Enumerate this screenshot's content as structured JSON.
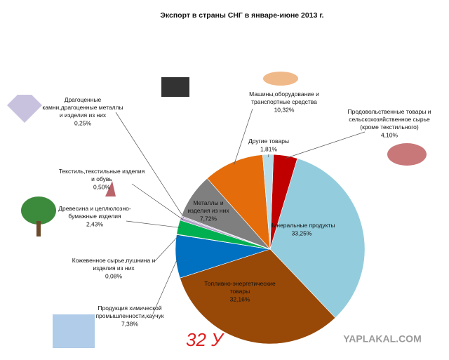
{
  "chart_data": {
    "type": "pie",
    "title": "Экспорт в страны СНГ в январе-июне 2013 г.",
    "categories": [
      "Продовольственные товары и\nсельскохозяйственное сырье\n(кроме текстильного)",
      "Минеральные продукты",
      "Топливно-энергетические\nтовары",
      "Продукция химической\nпромышленности,каучук",
      "Кожевенное сырье,пушнина и\nизделия из них",
      "Древесина и целлюлозно-\nбумажные изделия",
      "Текстиль,текстильные изделия\nи обувь",
      "Драгоценные\nкамни,драгоценные металлы\nи изделия из них",
      "Металлы и\nизделия из них",
      "Машины,оборудование и\nтранспортные средства",
      "Другие товары"
    ],
    "values": [
      4.1,
      33.25,
      32.16,
      7.38,
      0.08,
      2.43,
      0.5,
      0.25,
      7.72,
      10.32,
      1.81
    ],
    "value_labels": [
      "4,10%",
      "33,25%",
      "32,16%",
      "7,38%",
      "0,08%",
      "2,43%",
      "0,50%",
      "0,25%",
      "7,72%",
      "10,32%",
      "1,81%"
    ],
    "colors": [
      "#c00000",
      "#93cddd",
      "#984807",
      "#0070c0",
      "#f2f2f2",
      "#00b050",
      "#b3a2c7",
      "#ccc0da",
      "#7f7f7f",
      "#e46c0a",
      "#b7dee8"
    ],
    "annotations": [
      "32 У",
      "YAPLAKAL.COM"
    ]
  }
}
